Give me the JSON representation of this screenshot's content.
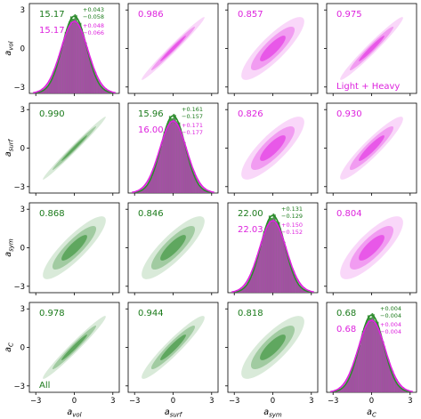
{
  "colors": {
    "all": "#2a8a2a",
    "light_heavy": "#e020e0",
    "all_text": "#1a7a1a",
    "lh_text": "#dd22dd"
  },
  "chart_data": {
    "type": "corner",
    "parameters": [
      "vol",
      "surf",
      "sym",
      "C"
    ],
    "axis_labels": [
      {
        "base": "a",
        "sub": "vol"
      },
      {
        "base": "a",
        "sub": "surf"
      },
      {
        "base": "a",
        "sub": "sym"
      },
      {
        "base": "a",
        "sub": "C"
      }
    ],
    "xlim": [
      -3.5,
      3.5
    ],
    "ylim": [
      -3.5,
      3.5
    ],
    "ticks": [
      -3,
      0,
      3
    ],
    "tick_labels": [
      "−3",
      "0",
      "3"
    ],
    "series": [
      {
        "name": "All",
        "color": "all"
      },
      {
        "name": "Light + Heavy",
        "color": "light_heavy"
      }
    ],
    "legend_labels": {
      "all": "All",
      "light_heavy": "Light + Heavy"
    },
    "marginals": [
      {
        "all": {
          "median": "15.17",
          "plus": "+0.043",
          "minus": "−0.058"
        },
        "light_heavy": {
          "median": "15.17",
          "plus": "+0.048",
          "minus": "−0.066"
        }
      },
      {
        "all": {
          "median": "15.96",
          "plus": "+0.161",
          "minus": "−0.157"
        },
        "light_heavy": {
          "median": "16.00",
          "plus": "+0.171",
          "minus": "−0.177"
        }
      },
      {
        "all": {
          "median": "22.00",
          "plus": "+0.131",
          "minus": "−0.129"
        },
        "light_heavy": {
          "median": "22.03",
          "plus": "+0.150",
          "minus": "−0.152"
        }
      },
      {
        "all": {
          "median": "0.68",
          "plus": "+0.004",
          "minus": "−0.004"
        },
        "light_heavy": {
          "median": "0.68",
          "plus": "+0.004",
          "minus": "−0.004"
        }
      }
    ],
    "correlations_all": [
      {
        "row": 1,
        "col": 0,
        "r": 0.99,
        "label": "0.990"
      },
      {
        "row": 2,
        "col": 0,
        "r": 0.868,
        "label": "0.868"
      },
      {
        "row": 2,
        "col": 1,
        "r": 0.846,
        "label": "0.846"
      },
      {
        "row": 3,
        "col": 0,
        "r": 0.978,
        "label": "0.978"
      },
      {
        "row": 3,
        "col": 1,
        "r": 0.944,
        "label": "0.944"
      },
      {
        "row": 3,
        "col": 2,
        "r": 0.818,
        "label": "0.818"
      }
    ],
    "correlations_light_heavy": [
      {
        "row": 0,
        "col": 1,
        "r": 0.986,
        "label": "0.986"
      },
      {
        "row": 0,
        "col": 2,
        "r": 0.857,
        "label": "0.857"
      },
      {
        "row": 0,
        "col": 3,
        "r": 0.975,
        "label": "0.975"
      },
      {
        "row": 1,
        "col": 2,
        "r": 0.826,
        "label": "0.826"
      },
      {
        "row": 1,
        "col": 3,
        "r": 0.93,
        "label": "0.930"
      },
      {
        "row": 2,
        "col": 3,
        "r": 0.804,
        "label": "0.804"
      }
    ]
  }
}
